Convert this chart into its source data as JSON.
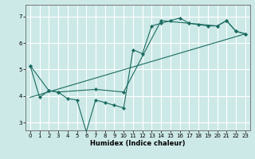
{
  "title": "",
  "xlabel": "Humidex (Indice chaleur)",
  "ylabel": "",
  "background_color": "#cce9e7",
  "grid_color": "#ffffff",
  "line_color": "#1a6b60",
  "xlim": [
    -0.5,
    23.5
  ],
  "ylim": [
    2.7,
    7.45
  ],
  "xticks": [
    0,
    1,
    2,
    3,
    4,
    5,
    6,
    7,
    8,
    9,
    10,
    11,
    12,
    13,
    14,
    15,
    16,
    17,
    18,
    19,
    20,
    21,
    22,
    23
  ],
  "yticks": [
    3,
    4,
    5,
    6,
    7
  ],
  "series0_x": [
    0,
    1,
    2,
    3,
    4,
    5,
    6,
    7,
    8,
    9,
    10,
    11,
    12,
    13,
    14,
    15,
    16,
    17,
    18,
    19,
    20,
    21,
    22,
    23
  ],
  "series0_y": [
    5.15,
    3.95,
    4.2,
    4.15,
    3.9,
    3.85,
    2.65,
    3.85,
    3.75,
    3.65,
    3.55,
    5.75,
    5.6,
    6.65,
    6.75,
    6.85,
    6.95,
    6.75,
    6.7,
    6.65,
    6.65,
    6.85,
    6.45,
    6.35
  ],
  "series1_x": [
    0,
    2,
    3,
    7,
    10,
    14,
    17,
    20,
    21,
    22,
    23
  ],
  "series1_y": [
    5.15,
    4.2,
    4.15,
    4.25,
    4.15,
    6.85,
    6.75,
    6.65,
    6.85,
    6.45,
    6.35
  ],
  "series2_x": [
    0,
    23
  ],
  "series2_y": [
    3.95,
    6.35
  ]
}
